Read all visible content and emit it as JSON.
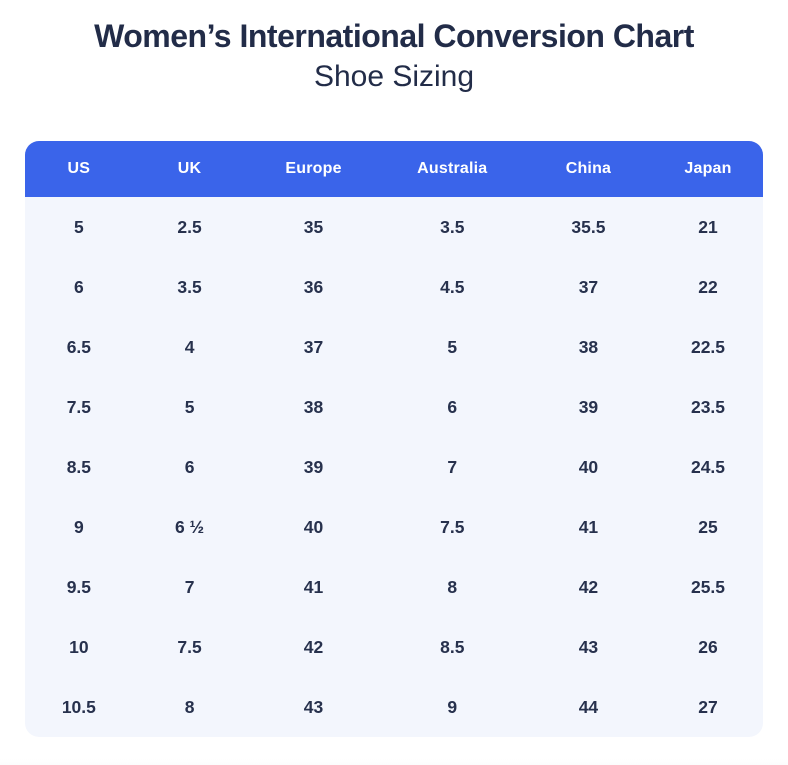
{
  "page": {
    "title": "Women’s International Conversion Chart",
    "subtitle": "Shoe Sizing"
  },
  "colors": {
    "header_bg": "#3A64EA",
    "header_text": "#FFFFFF",
    "body_bg": "#F3F6FD",
    "text": "#27314D",
    "title": "#222C48",
    "page_bg": "#FFFFFF"
  },
  "chart_data": {
    "type": "table",
    "title": "Women’s International Conversion Chart",
    "subtitle": "Shoe Sizing",
    "columns": [
      "US",
      "UK",
      "Europe",
      "Australia",
      "China",
      "Japan"
    ],
    "rows": [
      [
        "5",
        "2.5",
        "35",
        "3.5",
        "35.5",
        "21"
      ],
      [
        "6",
        "3.5",
        "36",
        "4.5",
        "37",
        "22"
      ],
      [
        "6.5",
        "4",
        "37",
        "5",
        "38",
        "22.5"
      ],
      [
        "7.5",
        "5",
        "38",
        "6",
        "39",
        "23.5"
      ],
      [
        "8.5",
        "6",
        "39",
        "7",
        "40",
        "24.5"
      ],
      [
        "9",
        "6 ½",
        "40",
        "7.5",
        "41",
        "25"
      ],
      [
        "9.5",
        "7",
        "41",
        "8",
        "42",
        "25.5"
      ],
      [
        "10",
        "7.5",
        "42",
        "8.5",
        "43",
        "26"
      ],
      [
        "10.5",
        "8",
        "43",
        "9",
        "44",
        "27"
      ]
    ],
    "layout": {
      "legend": false,
      "grid": false,
      "header_position": "top",
      "row_count": 9,
      "column_count": 6
    }
  }
}
